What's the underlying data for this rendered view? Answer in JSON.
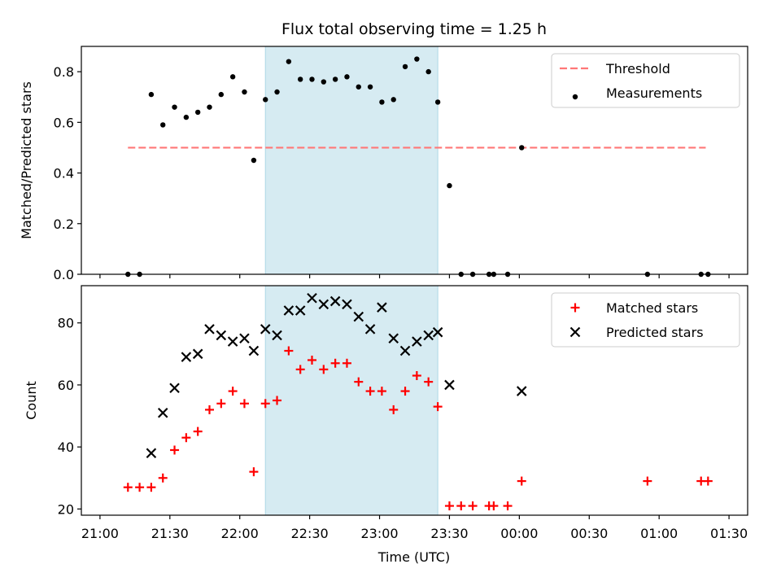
{
  "figure": {
    "title": "Flux total observing time = 1.25 h",
    "xlabel": "Time (UTC)"
  },
  "chart_data": [
    {
      "type": "scatter",
      "panel": "top",
      "title": "Flux total observing time = 1.25 h",
      "xlabel": "",
      "ylabel": "Matched/Predicted stars",
      "xlim": [
        "21:00",
        "01:30"
      ],
      "ylim": [
        0,
        0.9
      ],
      "x_ticks": [
        "21:00",
        "21:30",
        "22:00",
        "22:30",
        "23:00",
        "23:30",
        "00:00",
        "00:30",
        "01:00",
        "01:30"
      ],
      "y_ticks": [
        "0.0",
        "0.2",
        "0.4",
        "0.6",
        "0.8"
      ],
      "shaded_interval": {
        "start": "22:11",
        "end": "23:25",
        "color": "#add8e6"
      },
      "threshold": {
        "name": "Threshold",
        "value": 0.5,
        "x_start": "21:12",
        "x_end": "01:20",
        "color": "#ff7777",
        "style": "dashed"
      },
      "series": [
        {
          "name": "Measurements",
          "color": "#000000",
          "marker": "dot",
          "points": [
            [
              "21:12",
              0.0
            ],
            [
              "21:17",
              0.0
            ],
            [
              "21:22",
              0.71
            ],
            [
              "21:27",
              0.59
            ],
            [
              "21:32",
              0.66
            ],
            [
              "21:37",
              0.62
            ],
            [
              "21:42",
              0.64
            ],
            [
              "21:47",
              0.66
            ],
            [
              "21:52",
              0.71
            ],
            [
              "21:57",
              0.78
            ],
            [
              "22:02",
              0.72
            ],
            [
              "22:06",
              0.45
            ],
            [
              "22:11",
              0.69
            ],
            [
              "22:16",
              0.72
            ],
            [
              "22:21",
              0.84
            ],
            [
              "22:26",
              0.77
            ],
            [
              "22:31",
              0.77
            ],
            [
              "22:36",
              0.76
            ],
            [
              "22:41",
              0.77
            ],
            [
              "22:46",
              0.78
            ],
            [
              "22:51",
              0.74
            ],
            [
              "22:56",
              0.74
            ],
            [
              "23:01",
              0.68
            ],
            [
              "23:06",
              0.69
            ],
            [
              "23:11",
              0.82
            ],
            [
              "23:16",
              0.85
            ],
            [
              "23:21",
              0.8
            ],
            [
              "23:25",
              0.68
            ],
            [
              "23:30",
              0.35
            ],
            [
              "23:35",
              0.0
            ],
            [
              "23:40",
              0.0
            ],
            [
              "23:47",
              0.0
            ],
            [
              "23:49",
              0.0
            ],
            [
              "23:55",
              0.0
            ],
            [
              "00:01",
              0.5
            ],
            [
              "00:55",
              0.0
            ],
            [
              "01:18",
              0.0
            ],
            [
              "01:21",
              0.0
            ]
          ]
        }
      ],
      "legend": {
        "placement": "upper right",
        "entries": [
          "Threshold",
          "Measurements"
        ]
      }
    },
    {
      "type": "scatter",
      "panel": "bottom",
      "xlabel": "Time (UTC)",
      "ylabel": "Count",
      "xlim": [
        "21:00",
        "01:30"
      ],
      "ylim": [
        18,
        92
      ],
      "x_ticks": [
        "21:00",
        "21:30",
        "22:00",
        "22:30",
        "23:00",
        "23:30",
        "00:00",
        "00:30",
        "01:00",
        "01:30"
      ],
      "y_ticks": [
        "20",
        "40",
        "60",
        "80"
      ],
      "shaded_interval": {
        "start": "22:11",
        "end": "23:25",
        "color": "#add8e6"
      },
      "series": [
        {
          "name": "Matched stars",
          "color": "#ff0000",
          "marker": "plus",
          "points": [
            [
              "21:12",
              27
            ],
            [
              "21:17",
              27
            ],
            [
              "21:22",
              27
            ],
            [
              "21:27",
              30
            ],
            [
              "21:32",
              39
            ],
            [
              "21:37",
              43
            ],
            [
              "21:42",
              45
            ],
            [
              "21:47",
              52
            ],
            [
              "21:52",
              54
            ],
            [
              "21:57",
              58
            ],
            [
              "22:02",
              54
            ],
            [
              "22:06",
              32
            ],
            [
              "22:11",
              54
            ],
            [
              "22:16",
              55
            ],
            [
              "22:21",
              71
            ],
            [
              "22:26",
              65
            ],
            [
              "22:31",
              68
            ],
            [
              "22:36",
              65
            ],
            [
              "22:41",
              67
            ],
            [
              "22:46",
              67
            ],
            [
              "22:51",
              61
            ],
            [
              "22:56",
              58
            ],
            [
              "23:01",
              58
            ],
            [
              "23:06",
              52
            ],
            [
              "23:11",
              58
            ],
            [
              "23:16",
              63
            ],
            [
              "23:21",
              61
            ],
            [
              "23:25",
              53
            ],
            [
              "23:30",
              21
            ],
            [
              "23:35",
              21
            ],
            [
              "23:40",
              21
            ],
            [
              "23:47",
              21
            ],
            [
              "23:49",
              21
            ],
            [
              "23:55",
              21
            ],
            [
              "00:01",
              29
            ],
            [
              "00:55",
              29
            ],
            [
              "01:18",
              29
            ],
            [
              "01:21",
              29
            ]
          ]
        },
        {
          "name": "Predicted stars",
          "color": "#000000",
          "marker": "x",
          "points": [
            [
              "21:22",
              38
            ],
            [
              "21:27",
              51
            ],
            [
              "21:32",
              59
            ],
            [
              "21:37",
              69
            ],
            [
              "21:42",
              70
            ],
            [
              "21:47",
              78
            ],
            [
              "21:52",
              76
            ],
            [
              "21:57",
              74
            ],
            [
              "22:02",
              75
            ],
            [
              "22:06",
              71
            ],
            [
              "22:11",
              78
            ],
            [
              "22:16",
              76
            ],
            [
              "22:21",
              84
            ],
            [
              "22:26",
              84
            ],
            [
              "22:31",
              88
            ],
            [
              "22:36",
              86
            ],
            [
              "22:41",
              87
            ],
            [
              "22:46",
              86
            ],
            [
              "22:51",
              82
            ],
            [
              "22:56",
              78
            ],
            [
              "23:01",
              85
            ],
            [
              "23:06",
              75
            ],
            [
              "23:11",
              71
            ],
            [
              "23:16",
              74
            ],
            [
              "23:21",
              76
            ],
            [
              "23:25",
              77
            ],
            [
              "23:30",
              60
            ],
            [
              "00:01",
              58
            ]
          ]
        }
      ],
      "legend": {
        "placement": "upper right",
        "entries": [
          "Matched stars",
          "Predicted stars"
        ]
      }
    }
  ]
}
